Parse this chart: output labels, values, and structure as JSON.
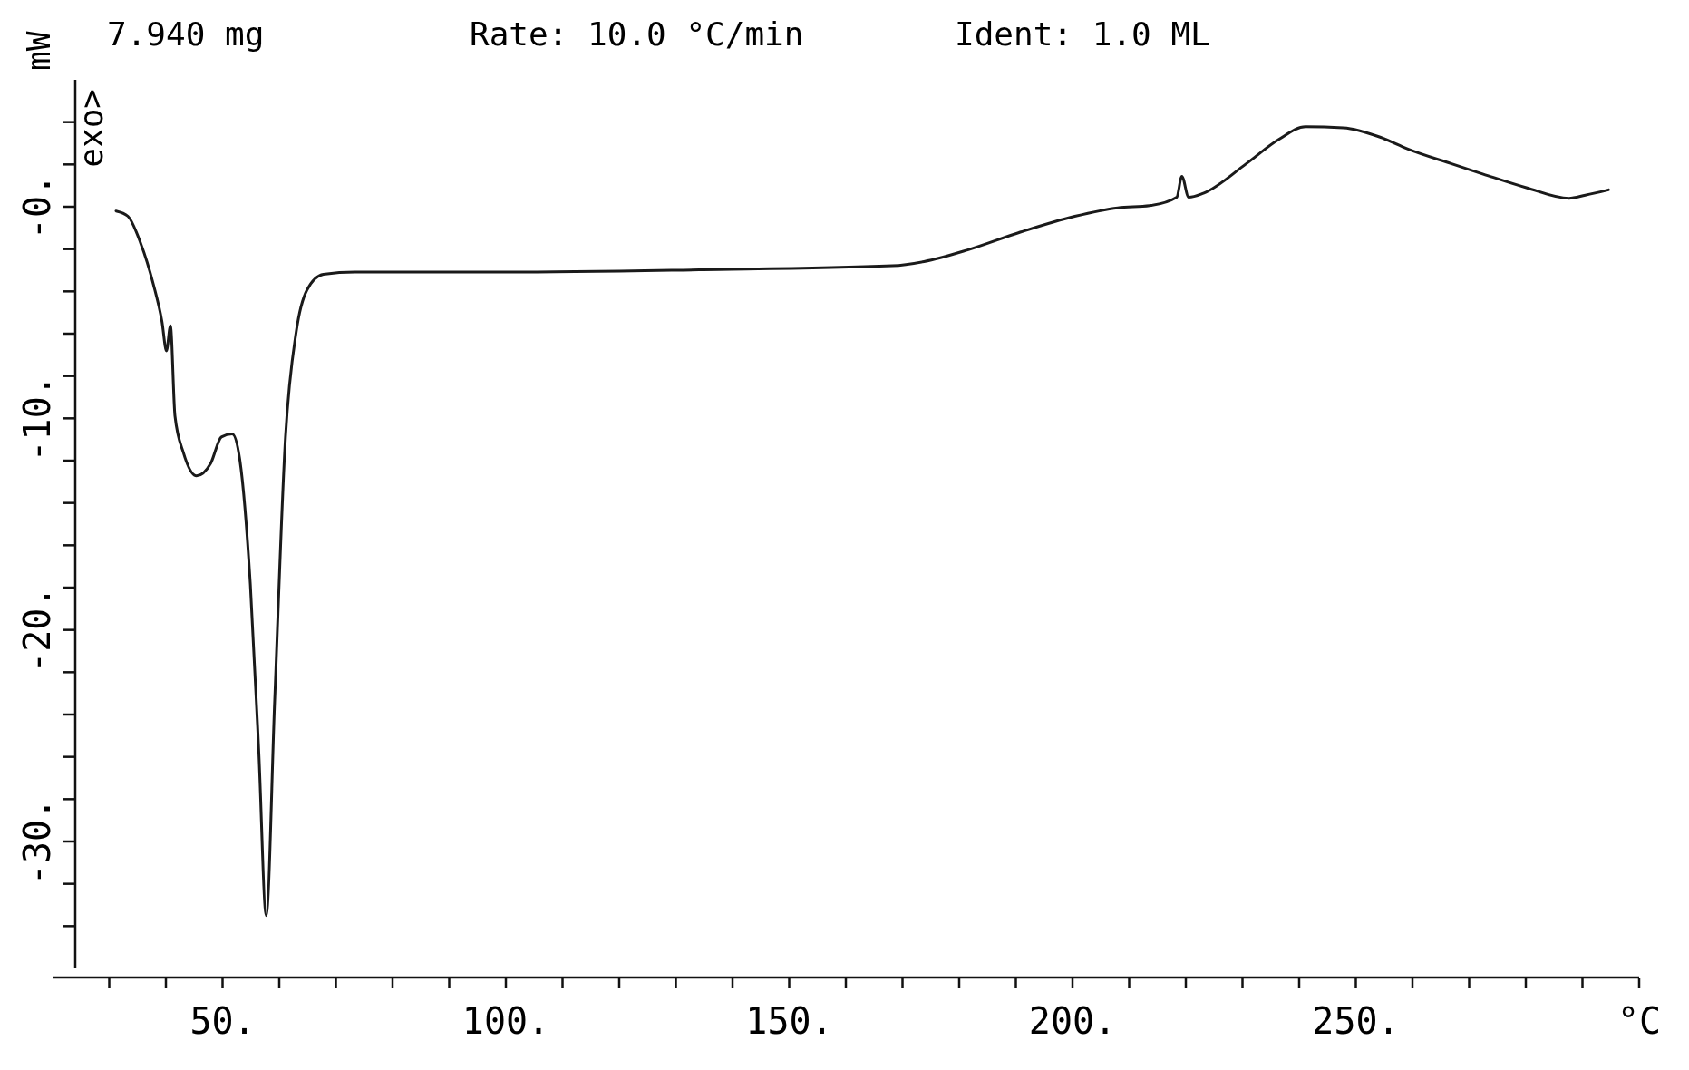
{
  "chart_data": {
    "type": "line",
    "ylabel": "mW",
    "annotations": [
      "7.940 mg",
      "Rate: 10.0 °C/min",
      "Ident:  1.0 ML",
      "exo>"
    ],
    "xlim": [
      20,
      300
    ],
    "xticks": [
      {
        "value": 30,
        "label": null
      },
      {
        "value": 40,
        "label": null
      },
      {
        "value": 50,
        "label": "50."
      },
      {
        "value": 60,
        "label": null
      },
      {
        "value": 70,
        "label": null
      },
      {
        "value": 80,
        "label": null
      },
      {
        "value": 90,
        "label": null
      },
      {
        "value": 100,
        "label": "100."
      },
      {
        "value": 110,
        "label": null
      },
      {
        "value": 120,
        "label": null
      },
      {
        "value": 130,
        "label": null
      },
      {
        "value": 140,
        "label": null
      },
      {
        "value": 150,
        "label": "150."
      },
      {
        "value": 160,
        "label": null
      },
      {
        "value": 170,
        "label": null
      },
      {
        "value": 180,
        "label": null
      },
      {
        "value": 190,
        "label": null
      },
      {
        "value": 200,
        "label": "200."
      },
      {
        "value": 210,
        "label": null
      },
      {
        "value": 220,
        "label": null
      },
      {
        "value": 230,
        "label": null
      },
      {
        "value": 240,
        "label": null
      },
      {
        "value": 250,
        "label": "250."
      },
      {
        "value": 260,
        "label": null
      },
      {
        "value": 270,
        "label": null
      },
      {
        "value": 280,
        "label": null
      },
      {
        "value": 290,
        "label": null
      },
      {
        "value": 300,
        "label": "°C"
      }
    ],
    "ylim": [
      -36,
      6
    ],
    "yticks": [
      {
        "value": -34,
        "label": null
      },
      {
        "value": -32,
        "label": null
      },
      {
        "value": -30,
        "label": "-30."
      },
      {
        "value": -28,
        "label": null
      },
      {
        "value": -26,
        "label": null
      },
      {
        "value": -24,
        "label": null
      },
      {
        "value": -22,
        "label": null
      },
      {
        "value": -20,
        "label": "-20."
      },
      {
        "value": -18,
        "label": null
      },
      {
        "value": -16,
        "label": null
      },
      {
        "value": -14,
        "label": null
      },
      {
        "value": -12,
        "label": null
      },
      {
        "value": -10,
        "label": "-10."
      },
      {
        "value": -8,
        "label": null
      },
      {
        "value": -6,
        "label": null
      },
      {
        "value": -4,
        "label": null
      },
      {
        "value": -2,
        "label": null
      },
      {
        "value": 0,
        "label": "-0."
      },
      {
        "value": 2,
        "label": null
      },
      {
        "value": 4,
        "label": null
      }
    ],
    "grid": false,
    "marker": "none",
    "line_style": "solid",
    "series": [
      {
        "color": "#1a1a1a",
        "x": [
          31.2,
          33.3,
          35.5,
          37.8,
          39.3,
          40.1,
          40.8,
          41.6,
          43.1,
          45.4,
          47.9,
          49.8,
          51.7,
          53.0,
          54.9,
          56.4,
          57.7,
          59.2,
          61.1,
          63.0,
          64.9,
          67.8,
          73.4,
          100,
          134.1,
          168.2,
          173.8,
          181.5,
          190.9,
          200.4,
          208,
          213.6,
          218.4,
          219.3,
          220.5,
          223.1,
          230.7,
          236.4,
          241.1,
          247.8,
          254.4,
          259.2,
          266.8,
          272.5,
          280.1,
          287.6,
          290.5,
          294.6
        ],
        "values": [
          -0.2,
          -0.45,
          -1.69,
          -3.68,
          -5.42,
          -6.81,
          -5.62,
          -9.89,
          -11.63,
          -12.72,
          -12.13,
          -10.88,
          -10.74,
          -11.88,
          -17.85,
          -25.8,
          -33.5,
          -23.3,
          -10.9,
          -5.9,
          -3.93,
          -3.19,
          -3.09,
          -3.09,
          -2.98,
          -2.79,
          -2.59,
          -2.04,
          -1.19,
          -0.45,
          -0.05,
          0.05,
          0.45,
          1.44,
          0.45,
          0.64,
          2.04,
          3.18,
          3.78,
          3.73,
          3.28,
          2.73,
          2.04,
          1.54,
          0.9,
          0.4,
          0.55,
          0.8
        ]
      }
    ]
  }
}
